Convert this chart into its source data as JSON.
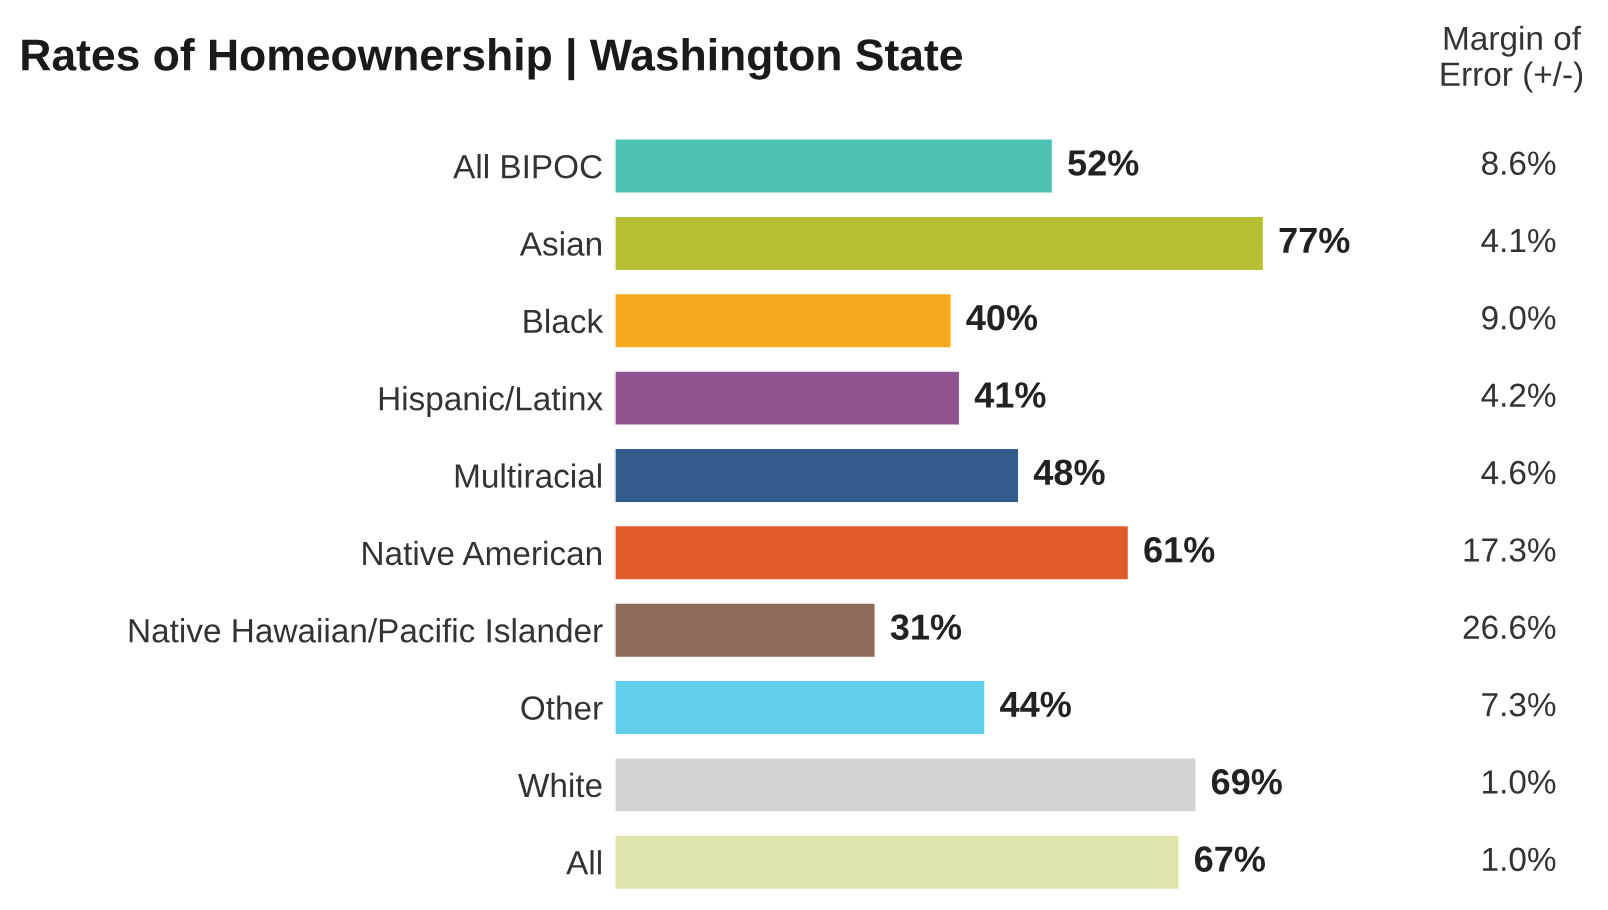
{
  "chart_data": {
    "type": "bar",
    "orientation": "horizontal",
    "title": "Rates of Homeownership | Washington State",
    "categories": [
      "All BIPOC",
      "Asian",
      "Black",
      "Hispanic/Latinx",
      "Multiracial",
      "Native American",
      "Native Hawaiian/Pacific Islander",
      "Other",
      "White",
      "All"
    ],
    "values": [
      52,
      77,
      40,
      41,
      48,
      61,
      31,
      44,
      69,
      67
    ],
    "value_labels": [
      "52%",
      "77%",
      "40%",
      "41%",
      "48%",
      "61%",
      "31%",
      "44%",
      "69%",
      "67%"
    ],
    "colors": [
      "#4fc1b5",
      "#b7c035",
      "#f6a81f",
      "#8f548f",
      "#335b8b",
      "#e05a2a",
      "#8d6b58",
      "#62cfea",
      "#d1d3d4",
      "#dfe2aa"
    ],
    "annotations": [
      "Margin of\nError (+/-)",
      "8.6%",
      "4.1%",
      "9.0%",
      "4.2%",
      "4.6%",
      "17.3%",
      "26.6%",
      "7.3%",
      "1.0%",
      "1.0%"
    ]
  }
}
